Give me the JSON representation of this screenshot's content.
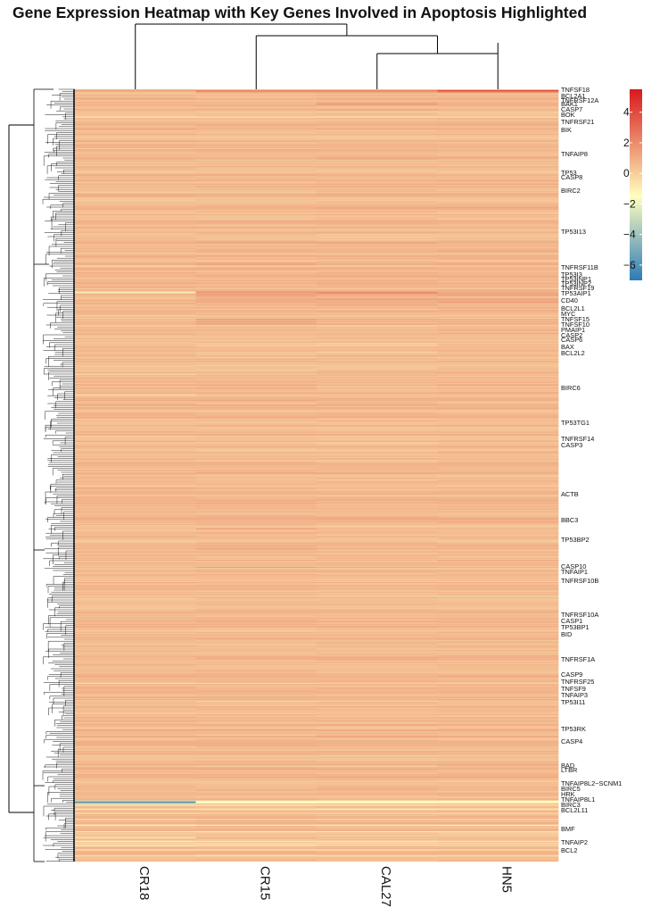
{
  "chart_data": {
    "type": "heatmap",
    "title": "Gene Expression Heatmap with Key Genes Involved in Apoptosis Highlighted",
    "columns": [
      "CR18",
      "CR15",
      "CAL27",
      "HN5"
    ],
    "color_scale": {
      "min": -7,
      "max": 5.5,
      "stops": [
        {
          "value": -7,
          "color": "#2c7bb6"
        },
        {
          "value": -1.5,
          "color": "#ffffbf"
        },
        {
          "value": 5.5,
          "color": "#d7191c"
        }
      ],
      "ticks": [
        4,
        2,
        0,
        -2,
        -4,
        -6
      ],
      "tick_labels": [
        "4",
        "2",
        "0",
        "−2",
        "−4",
        "−6"
      ]
    },
    "labeled_genes": [
      "TNFSF18",
      "BCL2A1",
      "TNFRSF12A",
      "BAK1",
      "CASP7",
      "BOK",
      "TNFRSF21",
      "BIK",
      "TNFAIP8",
      "TP53",
      "CASP8",
      "BIRC2",
      "TP53I13",
      "TNFRSF11B",
      "TP53I3",
      "TP53INP1",
      "TP53INP2",
      "TNFRSF19",
      "TP53AIP1",
      "CD40",
      "BCL2L1",
      "MYC",
      "TNFSF15",
      "TNFSF10",
      "PMAIP1",
      "CASP2",
      "CASP6",
      "BAX",
      "BCL2L2",
      "BIRC6",
      "TP53TG1",
      "TNFRSF14",
      "CASP3",
      "ACTB",
      "BBC3",
      "TP53BP2",
      "CASP10",
      "TNFAIP1",
      "TNFRSF10B",
      "TNFRSF10A",
      "CASP1",
      "TP53BP1",
      "BID",
      "TNFRSF1A",
      "CASP9",
      "TNFRSF25",
      "TNFSF9",
      "TNFAIP3",
      "TP53I11",
      "TP53RK",
      "CASP4",
      "BAD",
      "LTBR",
      "TNFAIP8L2−SCNM1",
      "BIRC5",
      "HRK",
      "TNFAIP8L1",
      "BIRC3",
      "BCL2L11",
      "BMF",
      "TNFAIP2",
      "BCL2"
    ],
    "bands": [
      {
        "row": 1,
        "values": [
          1.5,
          2.5,
          2.5,
          4.5
        ]
      },
      {
        "row": 2,
        "values": [
          0.5,
          1.5,
          1.5,
          2.0
        ]
      },
      {
        "row": 3,
        "values": [
          0.5,
          0.8,
          1.0,
          1.5
        ]
      },
      {
        "row": 8,
        "values": [
          1.0,
          0.6,
          0.8,
          1.0
        ]
      },
      {
        "row": 12,
        "values": [
          0.8,
          0.6,
          0.9,
          0.7
        ]
      },
      {
        "row": 14,
        "values": [
          0.4,
          0.3,
          1.8,
          0.9
        ]
      },
      {
        "row": 20,
        "values": [
          0.8,
          0.7,
          1.0,
          0.6
        ]
      },
      {
        "row": 27,
        "values": [
          -0.8,
          -0.5,
          -0.6,
          -0.4
        ]
      },
      {
        "row": 35,
        "values": [
          0.7,
          0.9,
          0.8,
          0.9
        ]
      },
      {
        "row": 50,
        "values": [
          0.9,
          0.8,
          0.7,
          0.8
        ]
      },
      {
        "row": 66,
        "values": [
          0.6,
          0.7,
          0.8,
          0.9
        ]
      },
      {
        "row": 90,
        "values": [
          0.9,
          0.8,
          0.9,
          0.8
        ]
      },
      {
        "row": 120,
        "values": [
          0.6,
          0.7,
          0.9,
          0.6
        ]
      },
      {
        "row": 160,
        "values": [
          0.5,
          0.9,
          0.8,
          0.7
        ]
      },
      {
        "row": 199,
        "values": [
          -2.0,
          1.8,
          1.6,
          0.8
        ]
      },
      {
        "row": 200,
        "values": [
          -0.5,
          1.5,
          2.5,
          1.5
        ]
      },
      {
        "row": 202,
        "values": [
          0.8,
          2.0,
          1.5,
          2.0
        ]
      },
      {
        "row": 204,
        "values": [
          0.6,
          1.7,
          1.2,
          1.0
        ]
      },
      {
        "row": 206,
        "values": [
          0.4,
          1.5,
          2.0,
          1.8
        ]
      },
      {
        "row": 209,
        "values": [
          0.5,
          1.2,
          1.0,
          1.5
        ]
      },
      {
        "row": 212,
        "values": [
          0.4,
          1.0,
          1.2,
          0.8
        ]
      },
      {
        "row": 226,
        "values": [
          0.9,
          2.0,
          1.2,
          1.2
        ]
      },
      {
        "row": 228,
        "values": [
          0.8,
          1.8,
          1.0,
          1.0
        ]
      },
      {
        "row": 230,
        "values": [
          0.6,
          1.5,
          0.8,
          0.9
        ]
      },
      {
        "row": 250,
        "values": [
          0.2,
          -0.2,
          -0.5,
          0.2
        ]
      },
      {
        "row": 252,
        "values": [
          0.3,
          -0.3,
          -0.6,
          0.1
        ]
      },
      {
        "row": 258,
        "values": [
          0.4,
          0.2,
          -0.4,
          0.5
        ]
      },
      {
        "row": 280,
        "values": [
          -0.5,
          0.2,
          0.4,
          0.5
        ]
      },
      {
        "row": 300,
        "values": [
          -0.3,
          0.3,
          0.5,
          0.4
        ]
      },
      {
        "row": 360,
        "values": [
          0.5,
          0.6,
          0.7,
          0.6
        ]
      },
      {
        "row": 420,
        "values": [
          0.6,
          0.8,
          0.7,
          0.5
        ]
      },
      {
        "row": 432,
        "values": [
          0.6,
          1.5,
          0.8,
          0.7
        ]
      },
      {
        "row": 436,
        "values": [
          0.7,
          1.2,
          0.7,
          0.6
        ]
      },
      {
        "row": 452,
        "values": [
          0.8,
          1.4,
          1.0,
          0.9
        ]
      },
      {
        "row": 470,
        "values": [
          0.7,
          1.5,
          1.2,
          0.9
        ]
      },
      {
        "row": 500,
        "values": [
          0.6,
          1.0,
          0.9,
          0.8
        ]
      },
      {
        "row": 520,
        "values": [
          0.7,
          1.1,
          1.0,
          0.9
        ]
      },
      {
        "row": 560,
        "values": [
          0.5,
          0.8,
          0.9,
          0.7
        ]
      },
      {
        "row": 584,
        "values": [
          -0.6,
          -0.4,
          -0.2,
          -0.3
        ]
      },
      {
        "row": 590,
        "values": [
          0.5,
          0.6,
          0.7,
          0.6
        ]
      },
      {
        "row": 610,
        "values": [
          0.4,
          0.7,
          0.6,
          0.5
        ]
      },
      {
        "row": 640,
        "values": [
          0.6,
          0.7,
          0.6,
          0.5
        ]
      },
      {
        "row": 670,
        "values": [
          0.5,
          0.6,
          0.7,
          0.6
        ]
      },
      {
        "row": 700,
        "values": [
          -3.0,
          -1.8,
          -1.6,
          -1.5
        ]
      },
      {
        "row": 701,
        "values": [
          -6.5,
          -1.5,
          -1.3,
          -1.2
        ]
      },
      {
        "row": 702,
        "values": [
          -3.5,
          -1.4,
          -1.2,
          -1.0
        ]
      },
      {
        "row": 704,
        "values": [
          -1.8,
          -1.2,
          -1.0,
          -0.9
        ]
      },
      {
        "row": 708,
        "values": [
          -1.0,
          -0.8,
          -1.1,
          -0.8
        ]
      },
      {
        "row": 712,
        "values": [
          -0.9,
          -0.7,
          -0.8,
          -0.9
        ]
      },
      {
        "row": 718,
        "values": [
          -0.8,
          -0.7,
          -0.9,
          -0.7
        ]
      },
      {
        "row": 724,
        "values": [
          -0.8,
          -0.6,
          -0.7,
          -0.8
        ]
      },
      {
        "row": 730,
        "values": [
          -0.7,
          -0.8,
          -0.8,
          -0.7
        ]
      },
      {
        "row": 736,
        "values": [
          -0.6,
          0.8,
          0.6,
          0.5
        ]
      },
      {
        "row": 740,
        "values": [
          -1.2,
          -0.9,
          -1.0,
          -0.8
        ]
      },
      {
        "row": 742,
        "values": [
          -2.0,
          -1.3,
          -1.0,
          -0.9
        ]
      },
      {
        "row": 744,
        "values": [
          -1.5,
          -1.2,
          -0.9,
          -0.8
        ]
      },
      {
        "row": 748,
        "values": [
          -0.8,
          -0.7,
          -0.8,
          -0.6
        ]
      },
      {
        "row": 754,
        "values": [
          -0.7,
          -0.8,
          -0.6,
          -0.7
        ]
      }
    ]
  }
}
